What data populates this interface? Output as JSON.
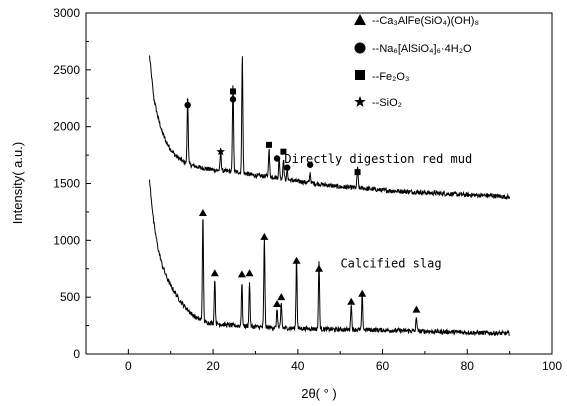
{
  "chart_data": {
    "type": "line",
    "xlabel": "2θ( ° )",
    "ylabel": "Intensity( a.u.)",
    "xlim": [
      -10,
      100
    ],
    "ylim": [
      0,
      3000
    ],
    "xticks": [
      0,
      20,
      40,
      60,
      80,
      100
    ],
    "yticks": [
      0,
      500,
      1000,
      1500,
      2000,
      2500,
      3000
    ],
    "grid": false,
    "legend": {
      "placement": "top-right",
      "entries": [
        {
          "marker": "triangle",
          "label": "--Ca₃AlFe(SiO₄)(OH)₈"
        },
        {
          "marker": "circle",
          "label": "--Na₆[AlSiO₄]₆·4H₂O"
        },
        {
          "marker": "square",
          "label": "--Fe₂O₃"
        },
        {
          "marker": "star",
          "label": "--SiO₂"
        }
      ]
    },
    "annotations": [
      {
        "text": "Directly digestion red mud",
        "x": 59,
        "y": 1680
      },
      {
        "text": "Calcified slag",
        "x": 62,
        "y": 760
      }
    ],
    "series": [
      {
        "baseline": [
          [
            5,
            2620
          ],
          [
            6,
            2250
          ],
          [
            7,
            2080
          ],
          [
            8,
            1950
          ],
          [
            9,
            1860
          ],
          [
            10,
            1800
          ],
          [
            11,
            1750
          ],
          [
            12,
            1720
          ],
          [
            13,
            1690
          ],
          [
            15,
            1660
          ],
          [
            17,
            1640
          ],
          [
            20,
            1620
          ],
          [
            23,
            1610
          ],
          [
            26,
            1600
          ],
          [
            30,
            1570
          ],
          [
            34,
            1560
          ],
          [
            38,
            1530
          ],
          [
            42,
            1510
          ],
          [
            46,
            1490
          ],
          [
            50,
            1470
          ],
          [
            55,
            1460
          ],
          [
            60,
            1440
          ],
          [
            65,
            1430
          ],
          [
            70,
            1420
          ],
          [
            75,
            1410
          ],
          [
            80,
            1400
          ],
          [
            85,
            1395
          ],
          [
            90,
            1380
          ]
        ],
        "peaks": [
          [
            14,
            600
          ],
          [
            21.8,
            170
          ],
          [
            24.7,
            780
          ],
          [
            26.9,
            1050
          ],
          [
            33.2,
            240
          ],
          [
            35.6,
            170
          ],
          [
            36.6,
            180
          ],
          [
            37.5,
            80
          ],
          [
            42.9,
            90
          ],
          [
            54.1,
            190
          ]
        ]
      },
      {
        "baseline": [
          [
            5,
            1520
          ],
          [
            6,
            1150
          ],
          [
            7,
            930
          ],
          [
            8,
            780
          ],
          [
            9,
            680
          ],
          [
            10,
            600
          ],
          [
            11,
            540
          ],
          [
            12,
            480
          ],
          [
            13,
            430
          ],
          [
            14,
            390
          ],
          [
            15,
            350
          ],
          [
            16,
            320
          ],
          [
            17,
            300
          ],
          [
            18,
            280
          ],
          [
            20,
            270
          ],
          [
            22,
            260
          ],
          [
            25,
            250
          ],
          [
            30,
            240
          ],
          [
            35,
            230
          ],
          [
            40,
            225
          ],
          [
            45,
            220
          ],
          [
            50,
            215
          ],
          [
            55,
            215
          ],
          [
            60,
            210
          ],
          [
            65,
            205
          ],
          [
            70,
            200
          ],
          [
            75,
            195
          ],
          [
            80,
            190
          ],
          [
            85,
            185
          ],
          [
            90,
            180
          ]
        ],
        "peaks": [
          [
            17.6,
            920
          ],
          [
            20.4,
            400
          ],
          [
            26.8,
            380
          ],
          [
            28.6,
            380
          ],
          [
            32.1,
            780
          ],
          [
            35.1,
            170
          ],
          [
            36.1,
            220
          ],
          [
            39.7,
            620
          ],
          [
            45,
            600
          ],
          [
            52.6,
            230
          ],
          [
            55.2,
            300
          ],
          [
            68,
            130
          ]
        ]
      }
    ],
    "markers": [
      {
        "type": "circle",
        "x": 14,
        "y": 2190
      },
      {
        "type": "star",
        "x": 21.8,
        "y": 1780
      },
      {
        "type": "square",
        "x": 24.7,
        "y": 2310
      },
      {
        "type": "circle",
        "x": 24.7,
        "y": 2240
      },
      {
        "type": "square",
        "x": 33.2,
        "y": 1840
      },
      {
        "type": "circle",
        "x": 35.1,
        "y": 1720
      },
      {
        "type": "square",
        "x": 36.6,
        "y": 1780
      },
      {
        "type": "circle",
        "x": 37.5,
        "y": 1640
      },
      {
        "type": "circle",
        "x": 42.9,
        "y": 1665
      },
      {
        "type": "square",
        "x": 54.1,
        "y": 1600
      },
      {
        "type": "triangle",
        "x": 17.6,
        "y": 1240
      },
      {
        "type": "triangle",
        "x": 20.4,
        "y": 710
      },
      {
        "type": "triangle",
        "x": 26.8,
        "y": 700
      },
      {
        "type": "triangle",
        "x": 28.6,
        "y": 710
      },
      {
        "type": "triangle",
        "x": 32.1,
        "y": 1030
      },
      {
        "type": "triangle",
        "x": 35.1,
        "y": 440
      },
      {
        "type": "triangle",
        "x": 36.1,
        "y": 500
      },
      {
        "type": "triangle",
        "x": 39.7,
        "y": 820
      },
      {
        "type": "triangle",
        "x": 45,
        "y": 750
      },
      {
        "type": "triangle",
        "x": 52.6,
        "y": 460
      },
      {
        "type": "triangle",
        "x": 55.2,
        "y": 530
      },
      {
        "type": "triangle",
        "x": 68,
        "y": 390
      }
    ]
  }
}
